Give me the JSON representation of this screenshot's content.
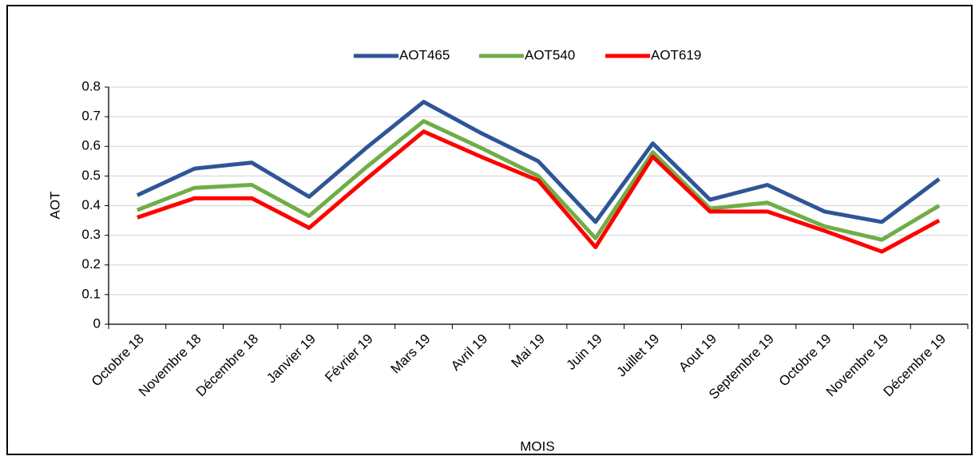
{
  "chart_data": {
    "type": "line",
    "x_label": "MOIS",
    "y_label": "AOT",
    "categories": [
      "Octobre 18",
      "Novembre 18",
      "Décembre 18",
      "Janvier 19",
      "Février 19",
      "Mars 19",
      "Avril 19",
      "Mai 19",
      "Juin 19",
      "Juillet 19",
      "Aout 19",
      "Septembre 19",
      "Octobre 19",
      "Novembre 19",
      "Décembre 19"
    ],
    "series": [
      {
        "name": "AOT465",
        "color": "#2e5597",
        "values": [
          0.435,
          0.525,
          0.545,
          0.43,
          0.595,
          0.75,
          0.645,
          0.55,
          0.345,
          0.61,
          0.42,
          0.47,
          0.38,
          0.345,
          0.49
        ]
      },
      {
        "name": "AOT540",
        "color": "#70ad47",
        "values": [
          0.385,
          0.46,
          0.47,
          0.365,
          0.53,
          0.685,
          0.595,
          0.5,
          0.29,
          0.58,
          0.39,
          0.41,
          0.33,
          0.285,
          0.4
        ]
      },
      {
        "name": "AOT619",
        "color": "#ff0000",
        "values": [
          0.36,
          0.425,
          0.425,
          0.325,
          0.49,
          0.65,
          0.565,
          0.485,
          0.26,
          0.565,
          0.38,
          0.38,
          0.315,
          0.245,
          0.35
        ]
      }
    ],
    "ylim": [
      0,
      0.8
    ],
    "yticks": [
      0,
      0.1,
      0.2,
      0.3,
      0.4,
      0.5,
      0.6,
      0.7,
      0.8
    ],
    "grid": true,
    "legend": "top"
  }
}
